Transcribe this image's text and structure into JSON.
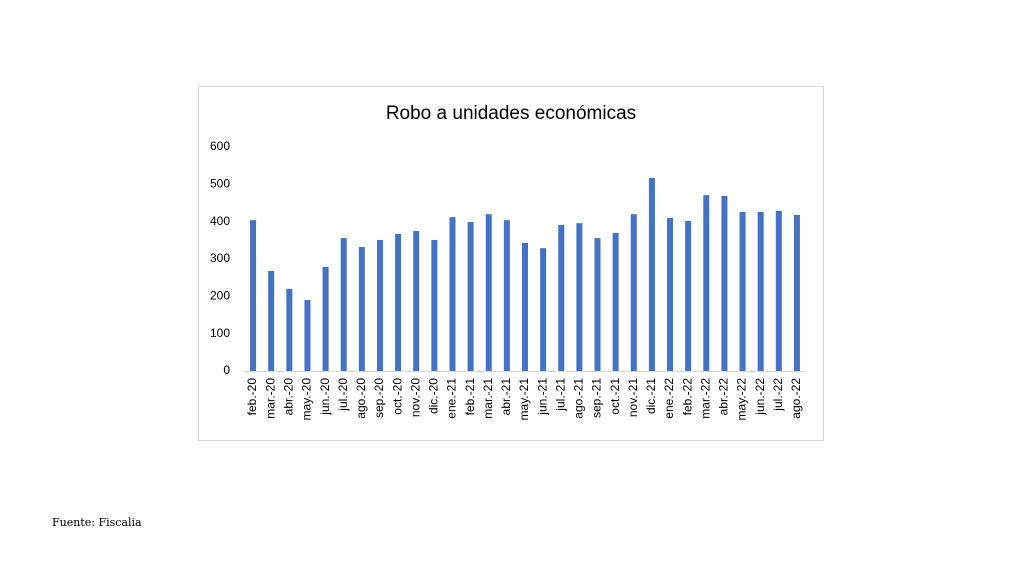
{
  "chart_data": {
    "type": "bar",
    "title": "Robo a unidades económicas",
    "categories": [
      "feb.-20",
      "mar.-20",
      "abr.-20",
      "may.-20",
      "jun.-20",
      "jul.-20",
      "ago.-20",
      "sep.-20",
      "oct.-20",
      "nov.-20",
      "dic.-20",
      "ene.-21",
      "feb.-21",
      "mar.-21",
      "abr.-21",
      "may.-21",
      "jun.-21",
      "jul.-21",
      "ago.-21",
      "sep.-21",
      "oct.-21",
      "nov.-21",
      "dic.-21",
      "ene.-22",
      "feb.-22",
      "mar.-22",
      "abr.-22",
      "may.-22",
      "jun.-22",
      "jul.-22",
      "ago.-22"
    ],
    "values": [
      404,
      268,
      220,
      190,
      279,
      356,
      332,
      351,
      367,
      375,
      351,
      412,
      399,
      420,
      404,
      343,
      329,
      391,
      396,
      356,
      370,
      420,
      517,
      410,
      402,
      471,
      469,
      426,
      426,
      429,
      418
    ],
    "color": "#4472c4",
    "ylim": [
      0,
      600
    ],
    "yticks": [
      0,
      100,
      200,
      300,
      400,
      500,
      600
    ],
    "grid": false,
    "source": "Fuente: Fiscalia"
  }
}
